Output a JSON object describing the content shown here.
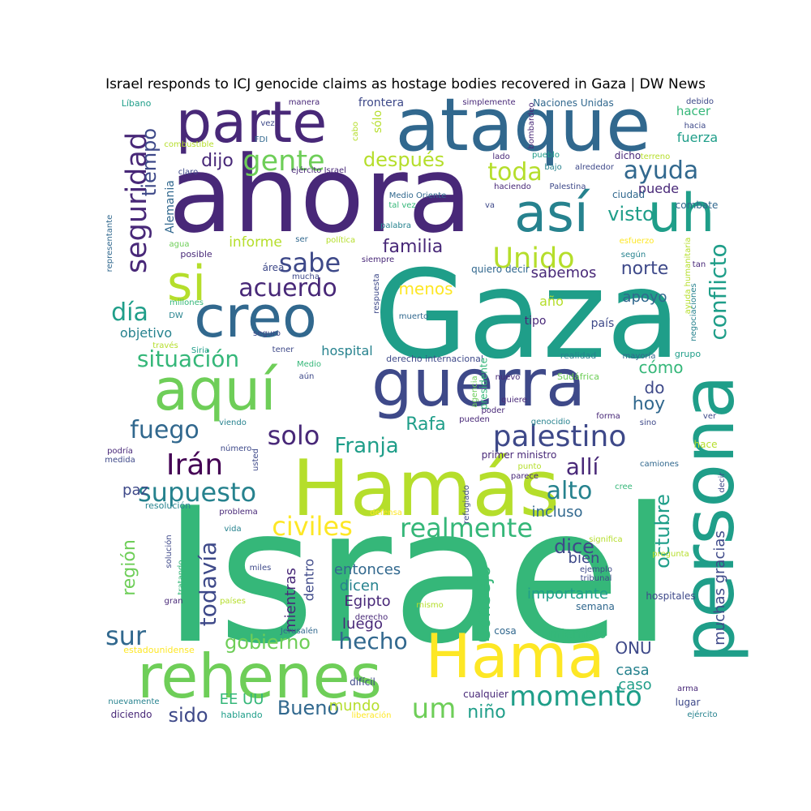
{
  "title": "Israel responds to ICJ genocide claims as hostage bodies recovered in Gaza | DW News",
  "palette": {
    "c0": "#440154",
    "c1": "#482878",
    "c2": "#3e4989",
    "c3": "#31688e",
    "c4": "#26828e",
    "c5": "#1f9e89",
    "c6": "#35b779",
    "c7": "#6ece58",
    "c8": "#b5de2b",
    "c9": "#fde725"
  },
  "words": [
    {
      "text": "Israel",
      "color": "c6"
    },
    {
      "text": "Gaza",
      "color": "c5"
    },
    {
      "text": "ahora",
      "color": "c1"
    },
    {
      "text": "Hamás",
      "color": "c8"
    },
    {
      "text": "ataque",
      "color": "c3"
    },
    {
      "text": "persona",
      "color": "c5"
    },
    {
      "text": "guerra",
      "color": "c2"
    },
    {
      "text": "Hama",
      "color": "c9"
    },
    {
      "text": "rehenes",
      "color": "c7"
    },
    {
      "text": "creo",
      "color": "c3"
    },
    {
      "text": "aquí",
      "color": "c7"
    },
    {
      "text": "parte",
      "color": "c1"
    },
    {
      "text": "así",
      "color": "c4"
    },
    {
      "text": "uh",
      "color": "c5"
    },
    {
      "text": "si",
      "color": "c8"
    },
    {
      "text": "seguridad",
      "color": "c1"
    },
    {
      "text": "gente",
      "color": "c7"
    },
    {
      "text": "Unido",
      "color": "c8"
    },
    {
      "text": "toda",
      "color": "c8"
    },
    {
      "text": "ayuda",
      "color": "c3"
    },
    {
      "text": "tiempo",
      "color": "c2"
    },
    {
      "text": "dijo",
      "color": "c1"
    },
    {
      "text": "después",
      "color": "c8"
    },
    {
      "text": "sabe",
      "color": "c2"
    },
    {
      "text": "familia",
      "color": "c1"
    },
    {
      "text": "visto",
      "color": "c5"
    },
    {
      "text": "conflicto",
      "color": "c5"
    },
    {
      "text": "acuerdo",
      "color": "c1"
    },
    {
      "text": "día",
      "color": "c5"
    },
    {
      "text": "situación",
      "color": "c6"
    },
    {
      "text": "fuego",
      "color": "c3"
    },
    {
      "text": "Irán",
      "color": "c0"
    },
    {
      "text": "supuesto",
      "color": "c4"
    },
    {
      "text": "palestino",
      "color": "c2"
    },
    {
      "text": "solo",
      "color": "c1"
    },
    {
      "text": "Franja",
      "color": "c5"
    },
    {
      "text": "Rafa",
      "color": "c5"
    },
    {
      "text": "allí",
      "color": "c1"
    },
    {
      "text": "alto",
      "color": "c4"
    },
    {
      "text": "civiles",
      "color": "c9"
    },
    {
      "text": "realmente",
      "color": "c6"
    },
    {
      "text": "dice",
      "color": "c2"
    },
    {
      "text": "octubre",
      "color": "c5"
    },
    {
      "text": "hecho",
      "color": "c3"
    },
    {
      "text": "gobierno",
      "color": "c7"
    },
    {
      "text": "sur",
      "color": "c3"
    },
    {
      "text": "momento",
      "color": "c5"
    },
    {
      "text": "um",
      "color": "c7"
    },
    {
      "text": "todavía",
      "color": "c2"
    },
    {
      "text": "región",
      "color": "c7"
    },
    {
      "text": "muchas gracias",
      "color": "c2"
    },
    {
      "text": "menos",
      "color": "c9"
    },
    {
      "text": "hoy",
      "color": "c3"
    },
    {
      "text": "do",
      "color": "c2"
    },
    {
      "text": "cómo",
      "color": "c6"
    },
    {
      "text": "norte",
      "color": "c2"
    },
    {
      "text": "sabemos",
      "color": "c1"
    },
    {
      "text": "apoyo",
      "color": "c3"
    },
    {
      "text": "Alemania",
      "color": "c3"
    },
    {
      "text": "informe",
      "color": "c8"
    },
    {
      "text": "objetivo",
      "color": "c4"
    },
    {
      "text": "hospital",
      "color": "c4"
    },
    {
      "text": "puede",
      "color": "c1"
    },
    {
      "text": "fuerza",
      "color": "c5"
    },
    {
      "text": "hacer",
      "color": "c6"
    },
    {
      "text": "sólo",
      "color": "c8"
    },
    {
      "text": "Consejo",
      "color": "c6"
    },
    {
      "text": "incluso",
      "color": "c3"
    },
    {
      "text": "bien",
      "color": "c2"
    },
    {
      "text": "importante",
      "color": "c5"
    },
    {
      "text": "entonces",
      "color": "c3"
    },
    {
      "text": "dicen",
      "color": "c4"
    },
    {
      "text": "Egipto",
      "color": "c1"
    },
    {
      "text": "luego",
      "color": "c1"
    },
    {
      "text": "mientras",
      "color": "c1"
    },
    {
      "text": "dentro",
      "color": "c2"
    },
    {
      "text": "miembro",
      "color": "c6"
    },
    {
      "text": "ONU",
      "color": "c2"
    },
    {
      "text": "casa",
      "color": "c4"
    },
    {
      "text": "caso",
      "color": "c5"
    },
    {
      "text": "paz",
      "color": "c2"
    },
    {
      "text": "Bueno",
      "color": "c3"
    },
    {
      "text": "sido",
      "color": "c2"
    },
    {
      "text": "EE UU",
      "color": "c6"
    },
    {
      "text": "mundo",
      "color": "c8"
    },
    {
      "text": "niño",
      "color": "c5"
    },
    {
      "text": "año",
      "color": "c8"
    },
    {
      "text": "tipo",
      "color": "c1"
    },
    {
      "text": "país",
      "color": "c2"
    },
    {
      "text": "frontera",
      "color": "c2"
    },
    {
      "text": "Naciones Unidas",
      "color": "c3"
    },
    {
      "text": "simplemente",
      "color": "c1"
    },
    {
      "text": "Líbano",
      "color": "c5"
    },
    {
      "text": "manera",
      "color": "c1"
    },
    {
      "text": "debido",
      "color": "c2"
    },
    {
      "text": "vez",
      "color": "c2"
    },
    {
      "text": "hacia",
      "color": "c2"
    },
    {
      "text": "FDI",
      "color": "c3"
    },
    {
      "text": "combustible",
      "color": "c8"
    },
    {
      "text": "claro",
      "color": "c2"
    },
    {
      "text": "ejército Israel",
      "color": "c1"
    },
    {
      "text": "cabo",
      "color": "c8"
    },
    {
      "text": "bombardeo",
      "color": "c1"
    },
    {
      "text": "pueblo",
      "color": "c5"
    },
    {
      "text": "bajo",
      "color": "c4"
    },
    {
      "text": "alrededor",
      "color": "c2"
    },
    {
      "text": "dicho",
      "color": "c1"
    },
    {
      "text": "terreno",
      "color": "c8"
    },
    {
      "text": "lado",
      "color": "c1"
    },
    {
      "text": "haciendo",
      "color": "c1"
    },
    {
      "text": "Palestina",
      "color": "c2"
    },
    {
      "text": "ciudad",
      "color": "c3"
    },
    {
      "text": "Medio Oriente",
      "color": "c3"
    },
    {
      "text": "tal vez",
      "color": "c6"
    },
    {
      "text": "va",
      "color": "c2"
    },
    {
      "text": "combate",
      "color": "c3"
    },
    {
      "text": "palabra",
      "color": "c4"
    },
    {
      "text": "representante",
      "color": "c3"
    },
    {
      "text": "agua",
      "color": "c7"
    },
    {
      "text": "ser",
      "color": "c3"
    },
    {
      "text": "política",
      "color": "c8"
    },
    {
      "text": "posible",
      "color": "c1"
    },
    {
      "text": "siempre",
      "color": "c1"
    },
    {
      "text": "esfuerzo",
      "color": "c9"
    },
    {
      "text": "según",
      "color": "c4"
    },
    {
      "text": "área",
      "color": "c2"
    },
    {
      "text": "mucha",
      "color": "c2"
    },
    {
      "text": "quiero decir",
      "color": "c3"
    },
    {
      "text": "tan",
      "color": "c1"
    },
    {
      "text": "millones",
      "color": "c6"
    },
    {
      "text": "respuesta",
      "color": "c2"
    },
    {
      "text": "ayuda humanitaria",
      "color": "c8"
    },
    {
      "text": "negociaciones",
      "color": "c4"
    },
    {
      "text": "DW",
      "color": "c4"
    },
    {
      "text": "seguro",
      "color": "c2"
    },
    {
      "text": "muerto",
      "color": "c3"
    },
    {
      "text": "través",
      "color": "c8"
    },
    {
      "text": "Siria",
      "color": "c5"
    },
    {
      "text": "tener",
      "color": "c2"
    },
    {
      "text": "Medio",
      "color": "c6"
    },
    {
      "text": "derecho internacional",
      "color": "c2"
    },
    {
      "text": "presidente",
      "color": "c6"
    },
    {
      "text": "realidad",
      "color": "c4"
    },
    {
      "text": "mayoría",
      "color": "c3"
    },
    {
      "text": "grupo",
      "color": "c5"
    },
    {
      "text": "aún",
      "color": "c2"
    },
    {
      "text": "nuevo",
      "color": "c1"
    },
    {
      "text": "agencia",
      "color": "c7"
    },
    {
      "text": "Sudáfrica",
      "color": "c7"
    },
    {
      "text": "quiere",
      "color": "c1"
    },
    {
      "text": "pueden",
      "color": "c1"
    },
    {
      "text": "poder",
      "color": "c1"
    },
    {
      "text": "forma",
      "color": "c1"
    },
    {
      "text": "genocidio",
      "color": "c4"
    },
    {
      "text": "sino",
      "color": "c2"
    },
    {
      "text": "ver",
      "color": "c2"
    },
    {
      "text": "viendo",
      "color": "c4"
    },
    {
      "text": "hace",
      "color": "c8"
    },
    {
      "text": "podría",
      "color": "c1"
    },
    {
      "text": "medida",
      "color": "c2"
    },
    {
      "text": "número",
      "color": "c2"
    },
    {
      "text": "usted",
      "color": "c2"
    },
    {
      "text": "primer ministro",
      "color": "c1"
    },
    {
      "text": "punto",
      "color": "c8"
    },
    {
      "text": "parece",
      "color": "c1"
    },
    {
      "text": "camiones",
      "color": "c3"
    },
    {
      "text": "decir",
      "color": "c2"
    },
    {
      "text": "cree",
      "color": "c6"
    },
    {
      "text": "refugiado",
      "color": "c2"
    },
    {
      "text": "resolución",
      "color": "c4"
    },
    {
      "text": "problema",
      "color": "c1"
    },
    {
      "text": "defensa",
      "color": "c9"
    },
    {
      "text": "vida",
      "color": "c4"
    },
    {
      "text": "significa",
      "color": "c8"
    },
    {
      "text": "solución",
      "color": "c2"
    },
    {
      "text": "tratando",
      "color": "c6"
    },
    {
      "text": "pregunta",
      "color": "c8"
    },
    {
      "text": "miles",
      "color": "c2"
    },
    {
      "text": "ejemplo",
      "color": "c2"
    },
    {
      "text": "tribunal",
      "color": "c2"
    },
    {
      "text": "gran",
      "color": "c1"
    },
    {
      "text": "países",
      "color": "c8"
    },
    {
      "text": "mismo",
      "color": "c8"
    },
    {
      "text": "semana",
      "color": "c3"
    },
    {
      "text": "hospitales",
      "color": "c2"
    },
    {
      "text": "derecho",
      "color": "c1"
    },
    {
      "text": "Jerusalén",
      "color": "c3"
    },
    {
      "text": "cosa",
      "color": "c3"
    },
    {
      "text": "estadounidense",
      "color": "c9"
    },
    {
      "text": "difícil",
      "color": "c2"
    },
    {
      "text": "cualquier",
      "color": "c1"
    },
    {
      "text": "arma",
      "color": "c1"
    },
    {
      "text": "lugar",
      "color": "c2"
    },
    {
      "text": "nuevamente",
      "color": "c4"
    },
    {
      "text": "diciendo",
      "color": "c1"
    },
    {
      "text": "hablando",
      "color": "c5"
    },
    {
      "text": "liberación",
      "color": "c9"
    },
    {
      "text": "ejército",
      "color": "c4"
    }
  ]
}
